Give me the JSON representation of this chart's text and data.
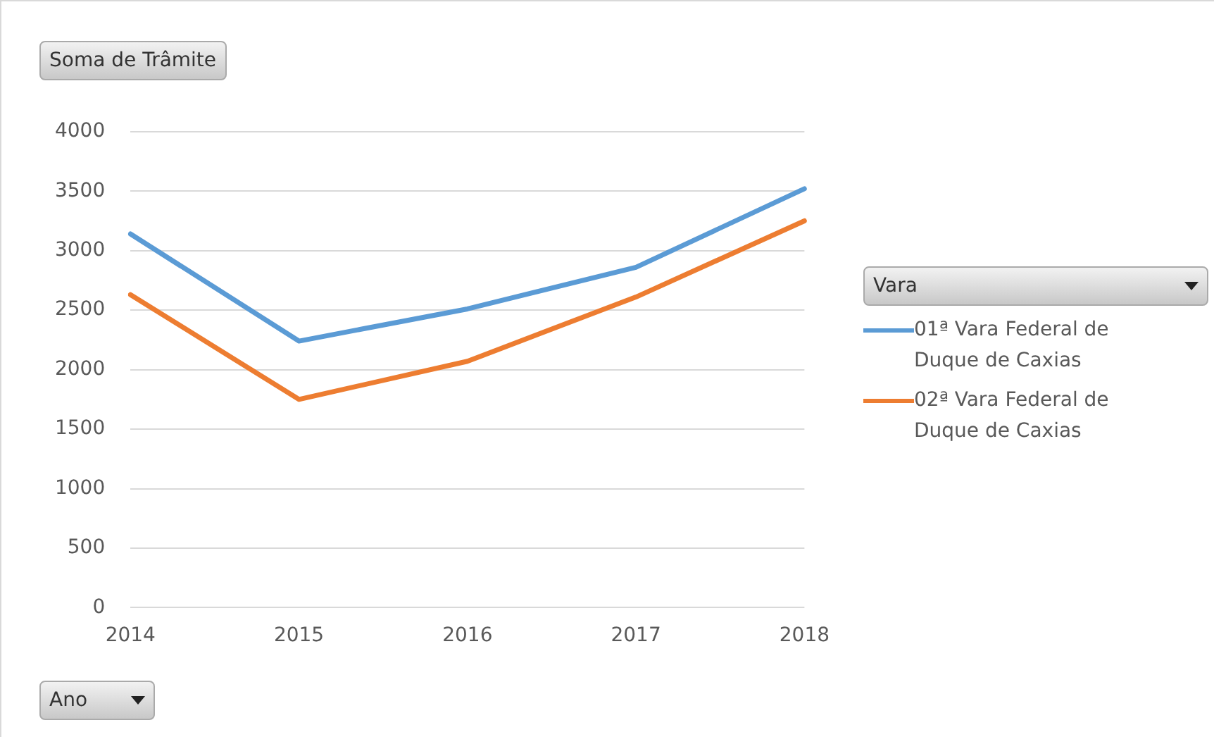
{
  "chart_data": {
    "type": "line",
    "ylabel": "Soma de Trâmite",
    "xlabel": "Ano",
    "legend_title": "Vara",
    "categories": [
      "2014",
      "2015",
      "2016",
      "2017",
      "2018"
    ],
    "series": [
      {
        "name": "01ª Vara Federal de Duque de Caxias",
        "color": "#5b9bd5",
        "values": [
          3140,
          2240,
          2510,
          2860,
          3520
        ]
      },
      {
        "name": "02ª Vara Federal de Duque de Caxias",
        "color": "#ed7d31",
        "values": [
          2630,
          1750,
          2070,
          2610,
          3250
        ]
      }
    ],
    "ylim": [
      0,
      4000
    ],
    "yticks": [
      0,
      500,
      1000,
      1500,
      2000,
      2500,
      3000,
      3500,
      4000
    ],
    "grid": "y",
    "legend": "right",
    "marker": "none",
    "line_style": "solid"
  }
}
